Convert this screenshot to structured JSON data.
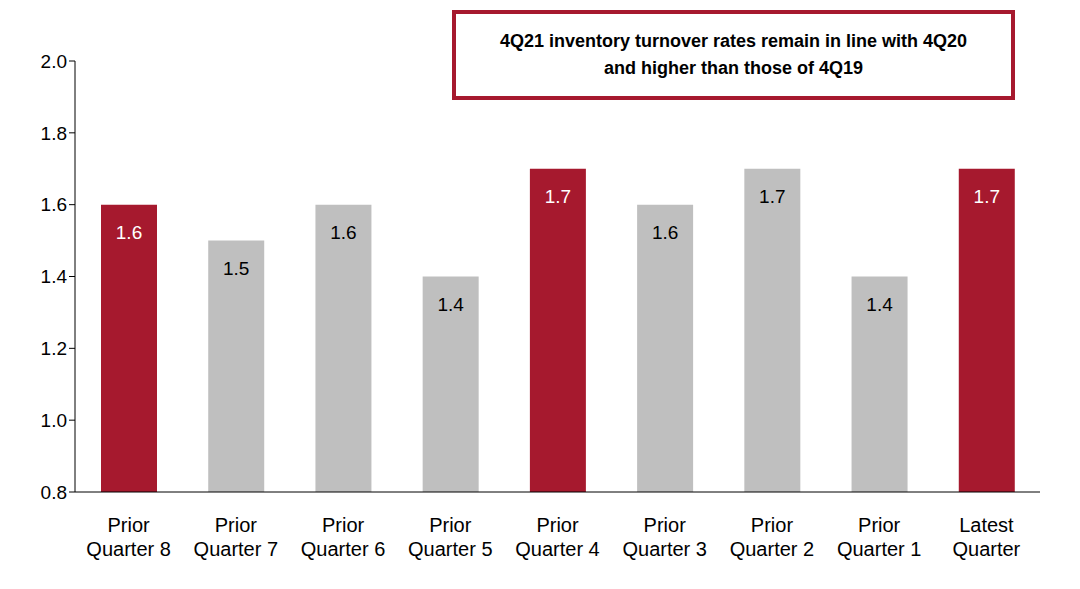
{
  "chart_data": {
    "type": "bar",
    "annotation": "4Q21 inventory turnover rates remain in line with 4Q20 and higher than those of 4Q19",
    "categories": [
      "Prior Quarter 8",
      "Prior Quarter 7",
      "Prior Quarter 6",
      "Prior Quarter 5",
      "Prior Quarter 4",
      "Prior Quarter 3",
      "Prior Quarter 2",
      "Prior Quarter 1",
      "Latest Quarter"
    ],
    "values": [
      1.6,
      1.5,
      1.6,
      1.4,
      1.7,
      1.6,
      1.7,
      1.4,
      1.7
    ],
    "colors": [
      "#A6192E",
      "#BFBFBF",
      "#BFBFBF",
      "#BFBFBF",
      "#A6192E",
      "#BFBFBF",
      "#BFBFBF",
      "#BFBFBF",
      "#A6192E"
    ],
    "ylim": [
      0.8,
      2.0
    ],
    "yticks": [
      0.8,
      {
        "value": 1,
        "label": "1.0"
      },
      1.2,
      1.4,
      1.6,
      1.8,
      {
        "value": 2,
        "label": "2.0"
      }
    ],
    "grid": false,
    "data_labels": true
  }
}
